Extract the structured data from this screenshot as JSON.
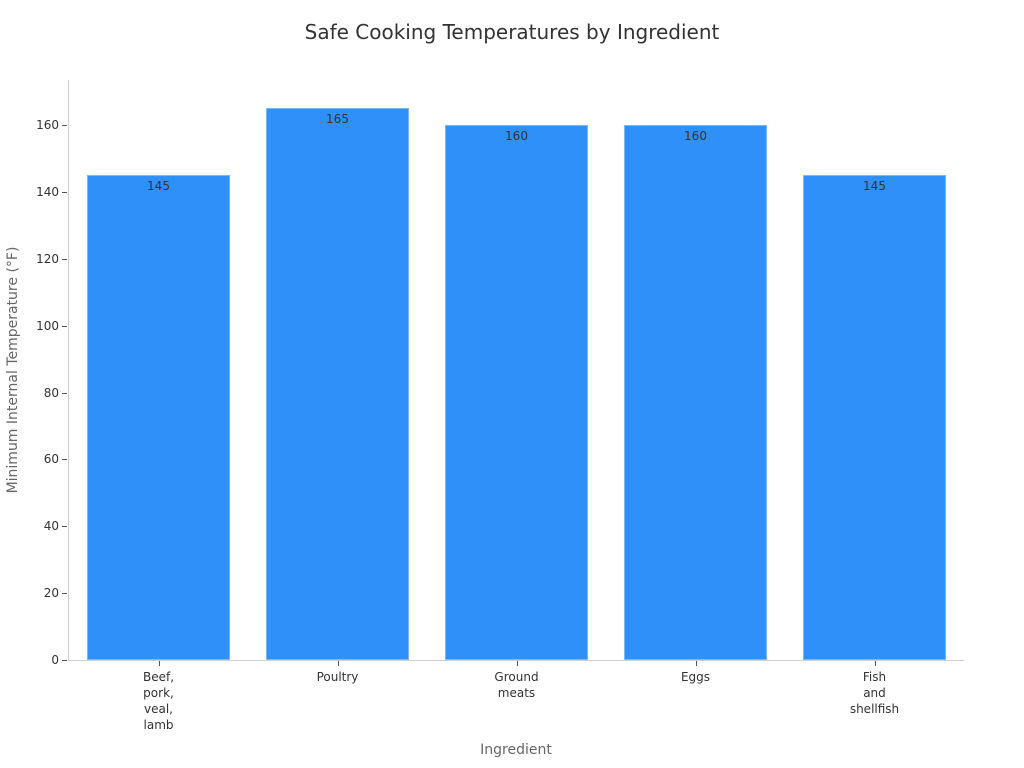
{
  "chart_data": {
    "type": "bar",
    "title": "Safe Cooking Temperatures by Ingredient",
    "xlabel": "Ingredient",
    "ylabel": "Minimum Internal Temperature (°F)",
    "categories": [
      "Beef,\npork,\nveal,\nlamb",
      "Poultry",
      "Ground\nmeats",
      "Eggs",
      "Fish\nand\nshellfish"
    ],
    "values": [
      145,
      165,
      160,
      160,
      145
    ],
    "data_labels": [
      "145",
      "165",
      "160",
      "160",
      "145"
    ],
    "ylim": [
      0,
      173.4
    ],
    "yticks": [
      0,
      20,
      40,
      60,
      80,
      100,
      120,
      140,
      160
    ],
    "grid": false,
    "legend": null,
    "bar_color": "#2e90f8"
  }
}
